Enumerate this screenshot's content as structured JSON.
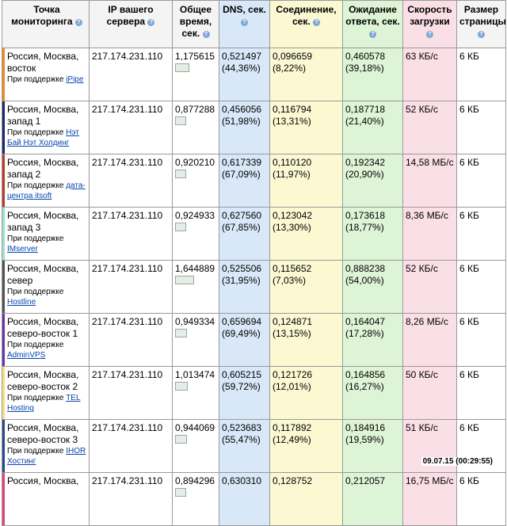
{
  "headers": {
    "point": "Точка мониторинга",
    "ip": "IP вашего сервера",
    "total": "Общее время, сек.",
    "dns": "DNS, сек.",
    "conn": "Соединение, сек.",
    "wait": "Ожидание ответа, сек.",
    "speed": "Скорость загрузки",
    "size": "Размер страницы"
  },
  "rows": [
    {
      "place": "Россия, Москва, восток",
      "support_label": "При поддержке",
      "sponsor": "iPipe",
      "ip": "217.174.231.110",
      "total": "1,175615",
      "dns": "0,521497 (44,36%)",
      "conn": "0,096659 (8,22%)",
      "wait": "0,460578 (39,18%)",
      "speed": "63 КБ/с",
      "size": "6 КБ",
      "stripe_color": "#f08a24",
      "bar_fraction": 0.71
    },
    {
      "place": "Россия, Москва, запад 1",
      "support_label": "При поддержке",
      "sponsor": "Нэт Бай Нэт Холдинг",
      "ip": "217.174.231.110",
      "total": "0,877288",
      "dns": "0,456056 (51,98%)",
      "conn": "0,116794 (13,31%)",
      "wait": "0,187718 (21,40%)",
      "speed": "52 КБ/с",
      "size": "6 КБ",
      "stripe_color": "#1a2a6c",
      "bar_fraction": 0.53
    },
    {
      "place": "Россия, Москва, запад 2",
      "support_label": "При поддержке",
      "sponsor": "дата-центра itsoft",
      "ip": "217.174.231.110",
      "total": "0,920210",
      "dns": "0,617339 (67,09%)",
      "conn": "0,110120 (11,97%)",
      "wait": "0,192342 (20,90%)",
      "speed": "14,58 МБ/с",
      "size": "6 КБ",
      "stripe_color": "#c0392b",
      "bar_fraction": 0.56
    },
    {
      "place": "Россия, Москва, запад 3",
      "support_label": "При поддержке",
      "sponsor": "IMserver",
      "ip": "217.174.231.110",
      "total": "0,924933",
      "dns": "0,627560 (67,85%)",
      "conn": "0,123042 (13,30%)",
      "wait": "0,173618 (18,77%)",
      "speed": "8,36 МБ/с",
      "size": "6 КБ",
      "stripe_color": "#9be3c6",
      "bar_fraction": 0.56
    },
    {
      "place": "Россия, Москва, север",
      "support_label": "При поддержке",
      "sponsor": "Hostline",
      "ip": "217.174.231.110",
      "total": "1,644889",
      "dns": "0,525506 (31,95%)",
      "conn": "0,115652 (7,03%)",
      "wait": "0,888238 (54,00%)",
      "speed": "52 КБ/с",
      "size": "6 КБ",
      "stripe_color": "#555555",
      "bar_fraction": 1.0
    },
    {
      "place": "Россия, Москва, северо-восток 1",
      "support_label": "При поддержке",
      "sponsor": "AdminVPS",
      "ip": "217.174.231.110",
      "total": "0,949334",
      "dns": "0,659694 (69,49%)",
      "conn": "0,124871 (13,15%)",
      "wait": "0,164047 (17,28%)",
      "speed": "8,26 МБ/с",
      "size": "6 КБ",
      "stripe_color": "#6a35a8",
      "bar_fraction": 0.58
    },
    {
      "place": "Россия, Москва, северо-восток 2",
      "support_label": "При поддержке",
      "sponsor": "TEL Hosting",
      "ip": "217.174.231.110",
      "total": "1,013474",
      "dns": "0,605215 (59,72%)",
      "conn": "0,121726 (12,01%)",
      "wait": "0,164856 (16,27%)",
      "speed": "50 КБ/с",
      "size": "6 КБ",
      "stripe_color": "#f4e27a",
      "bar_fraction": 0.62
    },
    {
      "place": "Россия, Москва, северо-восток 3",
      "support_label": "При поддержке",
      "sponsor": "IHOR Хостинг",
      "ip": "217.174.231.110",
      "total": "0,944069",
      "dns": "0,523683 (55,47%)",
      "conn": "0,117892 (12,49%)",
      "wait": "0,184916 (19,59%)",
      "speed": "51 КБ/с",
      "size": "6 КБ",
      "stripe_color": "#2c4a8c",
      "bar_fraction": 0.57
    },
    {
      "place": "Россия, Москва,",
      "support_label": "",
      "sponsor": "",
      "ip": "217.174.231.110",
      "total": "0,894296",
      "dns": "0,630310",
      "conn": "0,128752",
      "wait": "0,212057",
      "speed": "16,75 МБ/с",
      "size": "6 КБ",
      "stripe_color": "#e0457b",
      "bar_fraction": 0.54
    }
  ],
  "timestamp": "09.07.15 (00:29:55)",
  "help_glyph": "?"
}
